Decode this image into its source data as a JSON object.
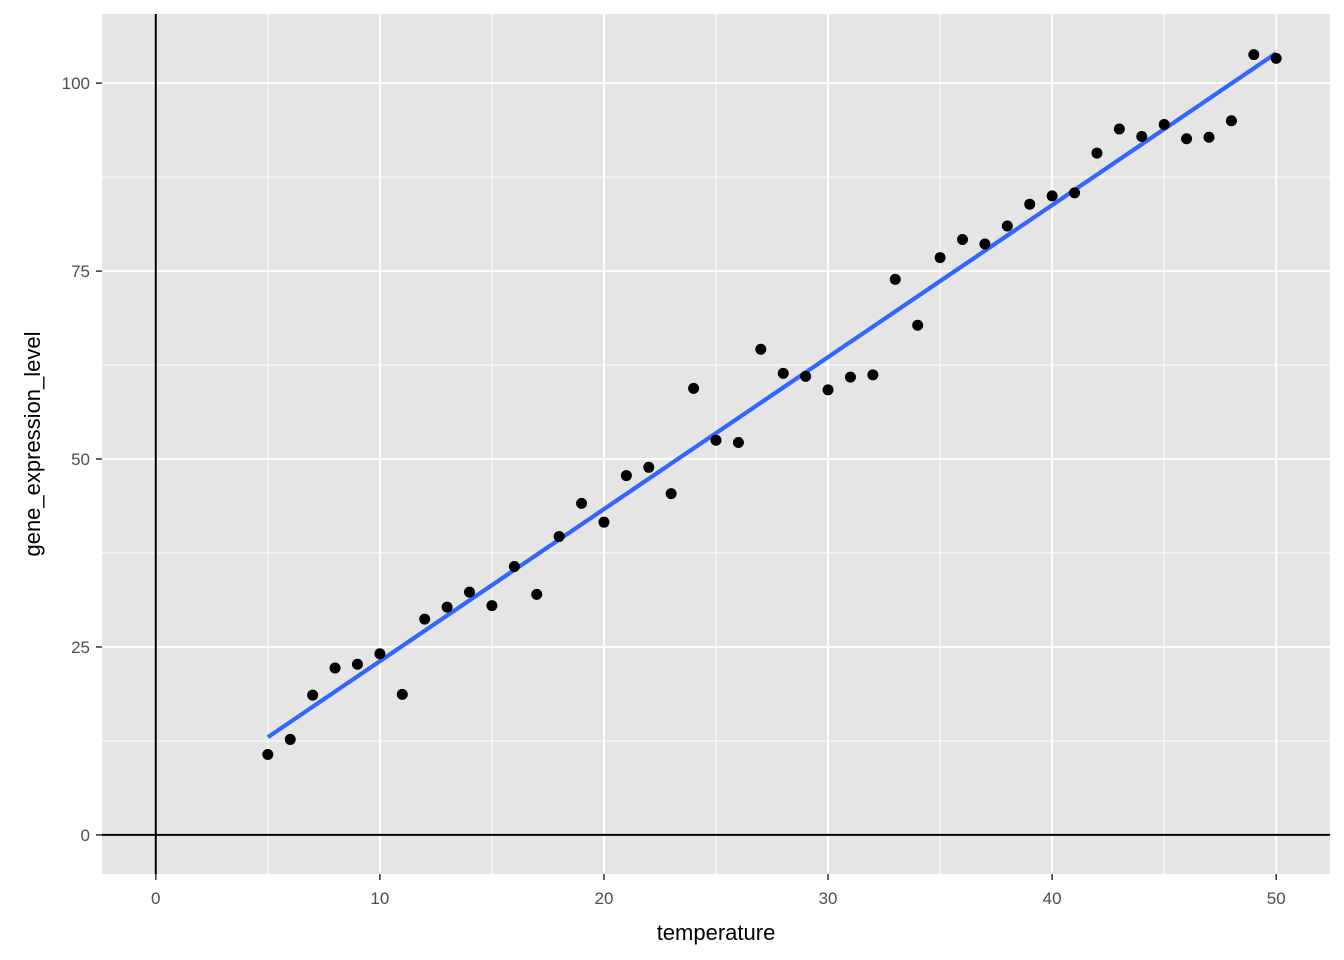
{
  "chart_data": {
    "type": "scatter",
    "title": "",
    "xlabel": "temperature",
    "ylabel": "gene_expression_level",
    "xlim": [
      -2.4,
      52.4
    ],
    "ylim": [
      -5.2,
      109.2
    ],
    "x_ticks": [
      0,
      10,
      20,
      30,
      40,
      50
    ],
    "y_ticks": [
      0,
      25,
      50,
      75,
      100
    ],
    "grid": true,
    "reference_lines": {
      "vline_x": 0,
      "hline_y": 0
    },
    "points": {
      "x": [
        5,
        6,
        7,
        8,
        9,
        10,
        11,
        12,
        13,
        14,
        15,
        16,
        17,
        18,
        19,
        20,
        21,
        22,
        23,
        24,
        25,
        26,
        27,
        28,
        29,
        30,
        31,
        32,
        33,
        34,
        35,
        36,
        37,
        38,
        39,
        40,
        41,
        42,
        43,
        44,
        45,
        46,
        47,
        48,
        49,
        50
      ],
      "y": [
        10.7,
        12.7,
        18.6,
        22.2,
        22.7,
        24.1,
        18.7,
        28.7,
        30.3,
        32.3,
        30.5,
        35.7,
        32.0,
        39.7,
        44.1,
        41.6,
        47.8,
        48.9,
        45.4,
        59.4,
        52.5,
        52.2,
        64.6,
        61.4,
        61.0,
        59.2,
        60.9,
        61.2,
        73.9,
        67.8,
        76.8,
        79.2,
        78.6,
        81.0,
        83.9,
        85.0,
        85.4,
        90.7,
        93.9,
        92.9,
        94.5,
        92.6,
        92.8,
        95.0,
        103.8,
        103.3
      ]
    },
    "trend_line": {
      "x": [
        5,
        50
      ],
      "y": [
        13.0,
        104.0
      ]
    },
    "colors": {
      "panel_background": "#e5e5e5",
      "gridline": "#ffffff",
      "point": "#000000",
      "trend_line": "#3366ff",
      "reference_line": "#000000",
      "tick_label": "#4d4d4d"
    }
  }
}
